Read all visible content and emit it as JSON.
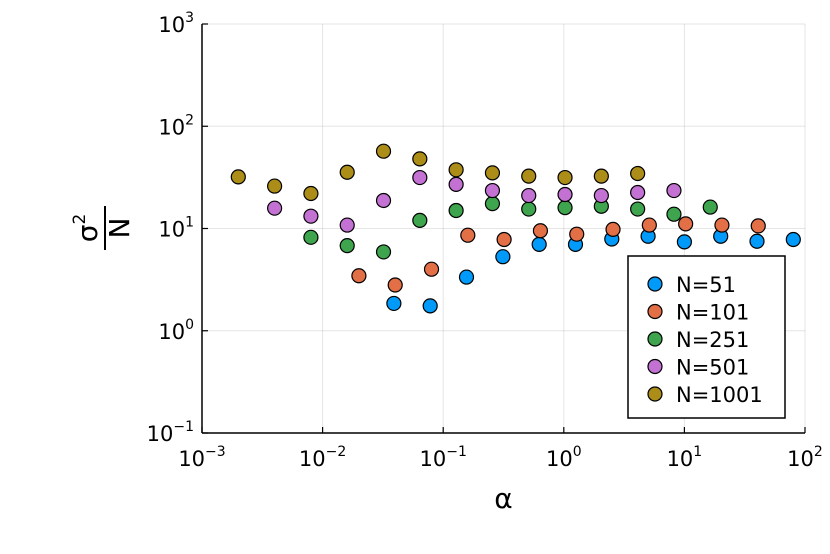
{
  "chart_data": {
    "type": "scatter",
    "title": "",
    "xlabel": "α",
    "ylabel": {
      "numerator": "σ",
      "superscript": "2",
      "denominator": "N"
    },
    "xscale": "log",
    "yscale": "log",
    "xlim": [
      0.001,
      100
    ],
    "ylim": [
      0.1,
      1000
    ],
    "xticks": [
      {
        "base": "10",
        "exp": "−3"
      },
      {
        "base": "10",
        "exp": "−2"
      },
      {
        "base": "10",
        "exp": "−1"
      },
      {
        "base": "10",
        "exp": "0"
      },
      {
        "base": "10",
        "exp": "1"
      },
      {
        "base": "10",
        "exp": "2"
      }
    ],
    "yticks": [
      {
        "base": "10",
        "exp": "−1"
      },
      {
        "base": "10",
        "exp": "0"
      },
      {
        "base": "10",
        "exp": "1"
      },
      {
        "base": "10",
        "exp": "2"
      },
      {
        "base": "10",
        "exp": "3"
      }
    ],
    "grid": true,
    "legend_position": "bottom-right",
    "series": [
      {
        "name": "N=51",
        "color": "#009AFA",
        "x": [
          0.039,
          0.078,
          0.156,
          0.3125,
          0.625,
          1.25,
          2.5,
          5,
          10,
          20,
          40,
          80
        ],
        "y": [
          1.85,
          1.75,
          3.35,
          5.3,
          7.0,
          7.0,
          7.9,
          8.4,
          7.4,
          8.4,
          7.5,
          7.8
        ]
      },
      {
        "name": "N=101",
        "color": "#E36F47",
        "x": [
          0.02,
          0.04,
          0.08,
          0.16,
          0.32,
          0.64,
          1.28,
          2.56,
          5.12,
          10.24,
          20.48,
          40.96
        ],
        "y": [
          3.45,
          2.8,
          4.0,
          8.6,
          7.8,
          9.5,
          8.8,
          9.8,
          10.8,
          11.1,
          10.8,
          10.6
        ]
      },
      {
        "name": "N=251",
        "color": "#3EA44E",
        "x": [
          0.008,
          0.016,
          0.032,
          0.064,
          0.128,
          0.256,
          0.512,
          1.024,
          2.048,
          4.096,
          8.192,
          16.384
        ],
        "y": [
          8.2,
          6.8,
          5.9,
          12.0,
          15.0,
          17.5,
          15.5,
          16.0,
          16.5,
          15.5,
          13.8,
          16.2
        ]
      },
      {
        "name": "N=501",
        "color": "#C371D2",
        "x": [
          0.004,
          0.008,
          0.016,
          0.032,
          0.064,
          0.128,
          0.256,
          0.512,
          1.024,
          2.048,
          4.096,
          8.192
        ],
        "y": [
          15.8,
          13.2,
          10.8,
          18.8,
          31.5,
          27.0,
          23.5,
          21.0,
          21.5,
          21.0,
          22.5,
          23.5
        ]
      },
      {
        "name": "N=1001",
        "color": "#AC8D18",
        "x": [
          0.002,
          0.004,
          0.008,
          0.016,
          0.032,
          0.064,
          0.128,
          0.256,
          0.512,
          1.024,
          2.048,
          4.096
        ],
        "y": [
          32.0,
          26.0,
          22.0,
          35.5,
          57.0,
          48.0,
          37.5,
          35.0,
          32.5,
          31.5,
          32.5,
          34.5
        ]
      }
    ]
  }
}
